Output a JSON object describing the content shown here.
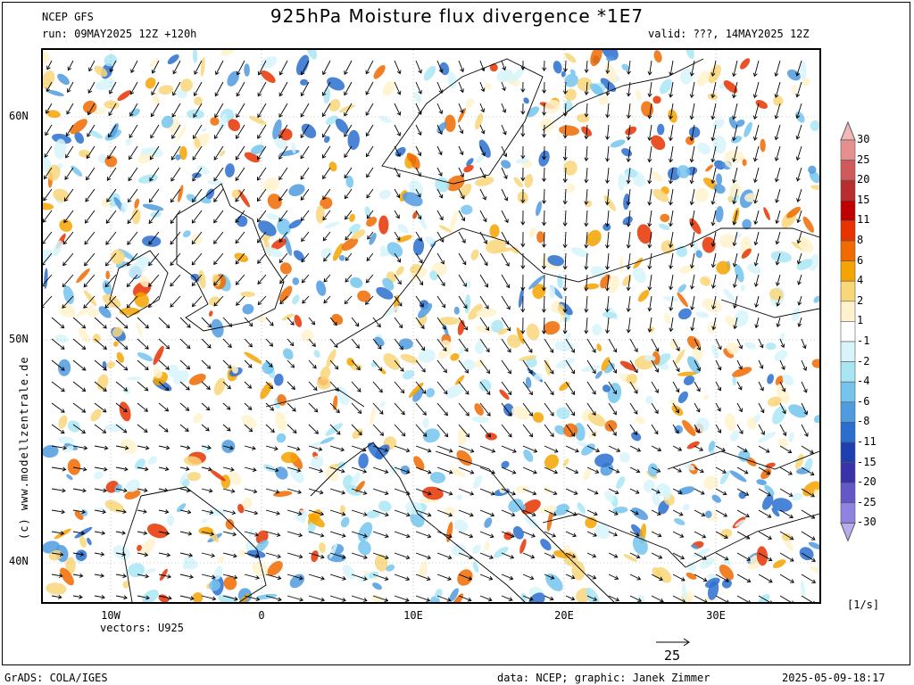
{
  "header": {
    "model": "NCEP GFS",
    "title": "925hPa Moisture flux divergence *1E7",
    "run": "run: 09MAY2025 12Z +120h",
    "valid": "valid: ???, 14MAY2025 12Z"
  },
  "map": {
    "lat_labels": [
      "60N",
      "50N",
      "40N"
    ],
    "lon_labels": [
      "10W",
      "0",
      "10E",
      "20E",
      "30E"
    ],
    "vectors_label": "vectors: U925",
    "reference_vector_value": "25"
  },
  "colorbar": {
    "unit": "[1/s]",
    "ticks": [
      "30",
      "25",
      "20",
      "15",
      "11",
      "8",
      "6",
      "4",
      "2",
      "1",
      "-1",
      "-2",
      "-4",
      "-6",
      "-8",
      "-11",
      "-15",
      "-20",
      "-25",
      "-30"
    ],
    "colors": [
      "#f2b8b8",
      "#e58f8f",
      "#d05a5a",
      "#b82e2e",
      "#c00000",
      "#e83200",
      "#f06a00",
      "#f5a300",
      "#f9d67a",
      "#fff2cc",
      "#ffffff",
      "#d6f4fa",
      "#a9e6f4",
      "#74c4ee",
      "#4f9be0",
      "#2a6fcf",
      "#1e3fb0",
      "#3a32a8",
      "#6458c8",
      "#8f83e0",
      "#b8acef"
    ]
  },
  "watermark": "(c) www.modellzentrale.de",
  "footer": {
    "left": "GrADS: COLA/IGES",
    "credits": "data: NCEP; graphic: Janek Zimmer",
    "timestamp": "2025-05-09-18:17"
  }
}
